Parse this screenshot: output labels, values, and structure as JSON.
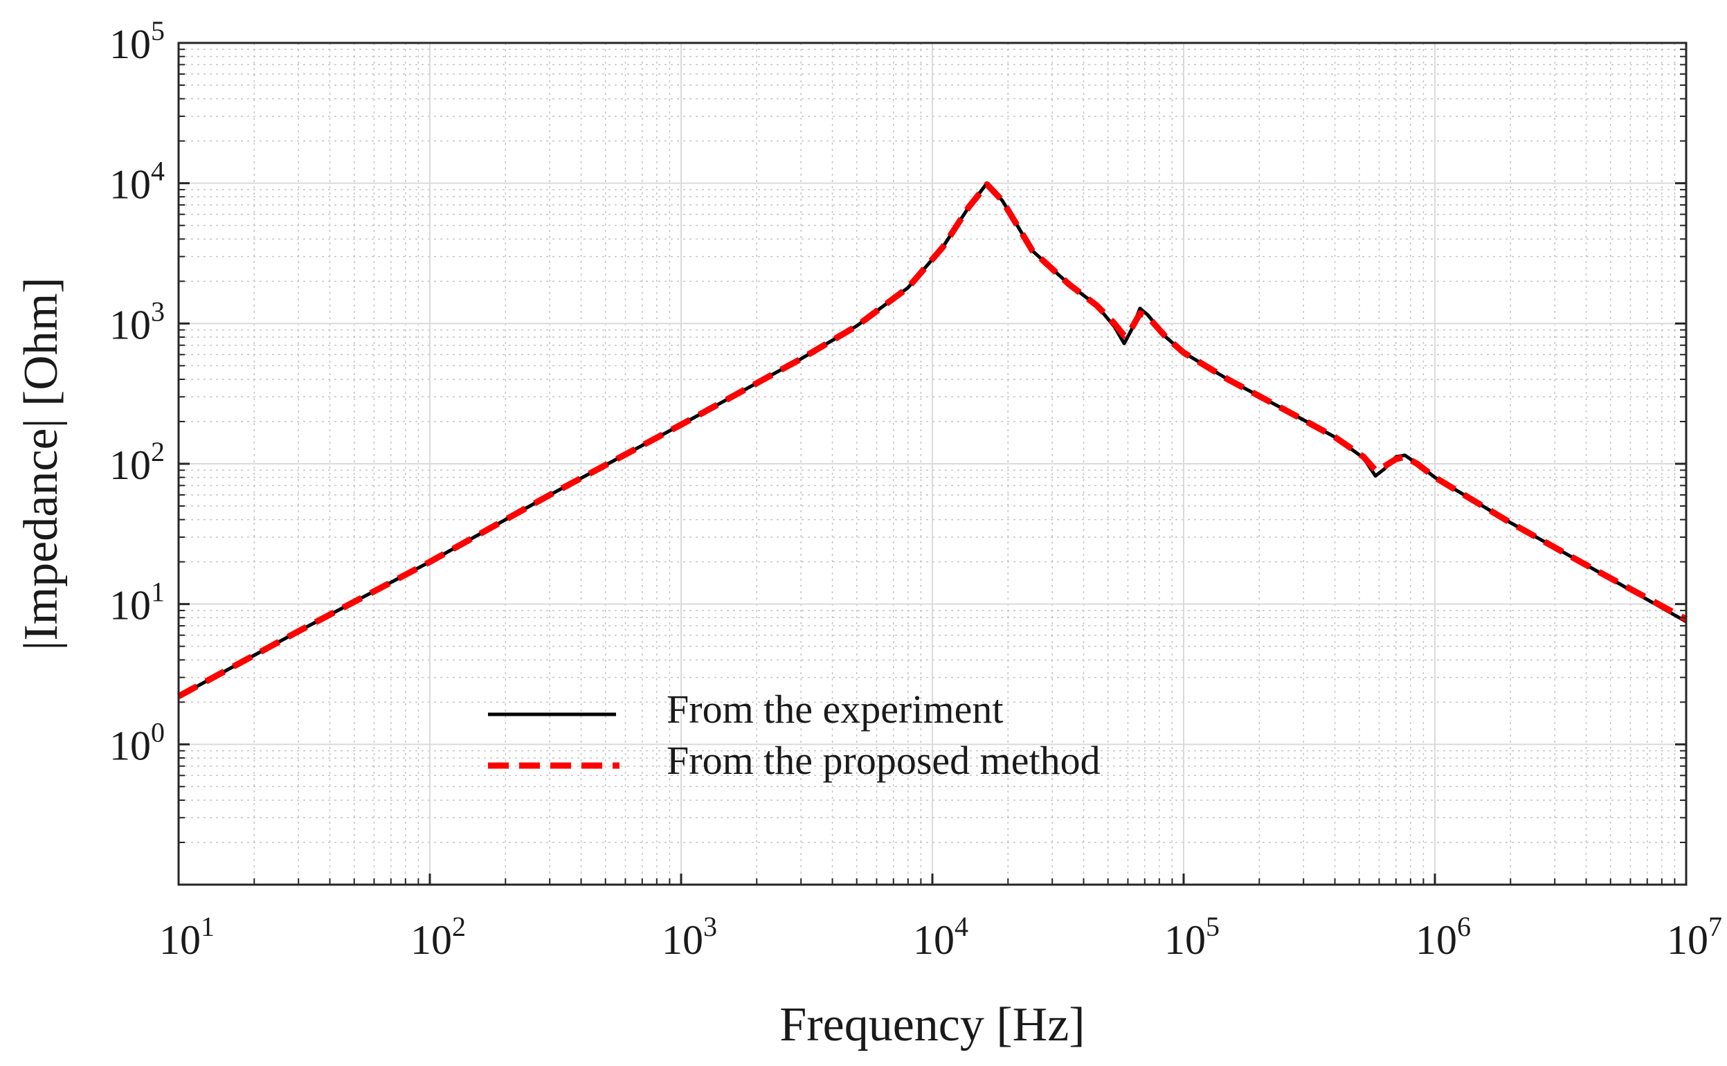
{
  "chart_data": {
    "type": "line",
    "xscale": "log",
    "yscale": "log",
    "xlabel": "Frequency [Hz]",
    "ylabel": "|Impedance| [Ohm]",
    "xlim": [
      10,
      10000000
    ],
    "ylim": [
      0.1,
      100000
    ],
    "grid": true,
    "legend_position": "lower-center",
    "x_ticks": [
      {
        "base": "10",
        "exp": "1"
      },
      {
        "base": "10",
        "exp": "2"
      },
      {
        "base": "10",
        "exp": "3"
      },
      {
        "base": "10",
        "exp": "4"
      },
      {
        "base": "10",
        "exp": "5"
      },
      {
        "base": "10",
        "exp": "6"
      },
      {
        "base": "10",
        "exp": "7"
      }
    ],
    "y_ticks": [
      {
        "base": "10",
        "exp": "0"
      },
      {
        "base": "10",
        "exp": "1"
      },
      {
        "base": "10",
        "exp": "2"
      },
      {
        "base": "10",
        "exp": "3"
      },
      {
        "base": "10",
        "exp": "4"
      },
      {
        "base": "10",
        "exp": "5"
      }
    ],
    "series": [
      {
        "name": "From the experiment",
        "color": "#000000",
        "style": "solid",
        "x": [
          10,
          30,
          100,
          300,
          1000,
          3000,
          5000,
          8000,
          11000,
          14000,
          16500,
          19000,
          25000,
          35000,
          45000,
          53000,
          58000,
          62000,
          67000,
          72000,
          85000,
          100000,
          150000,
          250000,
          400000,
          520000,
          580000,
          630000,
          700000,
          760000,
          850000,
          1000000,
          2000000,
          4000000,
          10000000
        ],
        "y": [
          2.2,
          6.4,
          20,
          60,
          190,
          560,
          960,
          1800,
          3500,
          6800,
          10000,
          7500,
          3300,
          1900,
          1350,
          950,
          720,
          900,
          1280,
          1150,
          800,
          620,
          400,
          245,
          155,
          110,
          82,
          92,
          112,
          115,
          100,
          80,
          38,
          19,
          7.5
        ]
      },
      {
        "name": "From the proposed method",
        "color": "#ff0000",
        "style": "dashed",
        "x": [
          10,
          30,
          100,
          300,
          1000,
          3000,
          5000,
          8000,
          11000,
          14000,
          16500,
          19000,
          25000,
          35000,
          45000,
          53000,
          58000,
          62000,
          67000,
          72000,
          85000,
          100000,
          150000,
          250000,
          400000,
          520000,
          580000,
          630000,
          700000,
          760000,
          850000,
          1000000,
          2000000,
          4000000,
          10000000
        ],
        "y": [
          2.2,
          6.4,
          20,
          60,
          190,
          560,
          960,
          1800,
          3500,
          6800,
          9800,
          7500,
          3300,
          1900,
          1350,
          1000,
          820,
          920,
          1180,
          1120,
          800,
          620,
          400,
          245,
          155,
          112,
          90,
          96,
          108,
          112,
          100,
          80,
          38,
          19,
          7.8
        ]
      }
    ]
  }
}
